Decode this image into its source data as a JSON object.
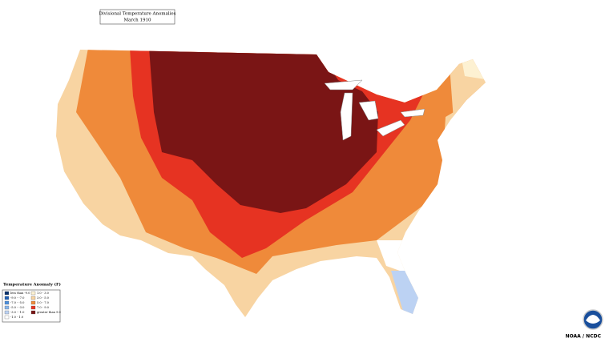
{
  "header": {
    "title": "Divisional Temperature Anomalies",
    "subtitle": "March 1910"
  },
  "legend": {
    "title": "Temperature Anomaly (F)",
    "items": [
      {
        "label": "less than -9.0",
        "color": "#08306b"
      },
      {
        "label": "-9.0 - -7.0",
        "color": "#1f5fb4"
      },
      {
        "label": "-7.0 - -5.0",
        "color": "#4a8fdc"
      },
      {
        "label": "-5.0 - -3.0",
        "color": "#86b4ec"
      },
      {
        "label": "-3.0 - -1.0",
        "color": "#bcd2f3"
      },
      {
        "label": "-1.0 - 1.0",
        "color": "#ffffff"
      },
      {
        "label": "1.0 - 3.0",
        "color": "#fdf1d2"
      },
      {
        "label": "3.0 - 5.0",
        "color": "#f8d4a2"
      },
      {
        "label": "5.0 - 7.0",
        "color": "#ef8a3a"
      },
      {
        "label": "7.0 - 9.0",
        "color": "#e63322"
      },
      {
        "label": "greater than 9.0",
        "color": "#7a1515"
      }
    ]
  },
  "footer": {
    "credit": "NOAA / NCDC"
  }
}
